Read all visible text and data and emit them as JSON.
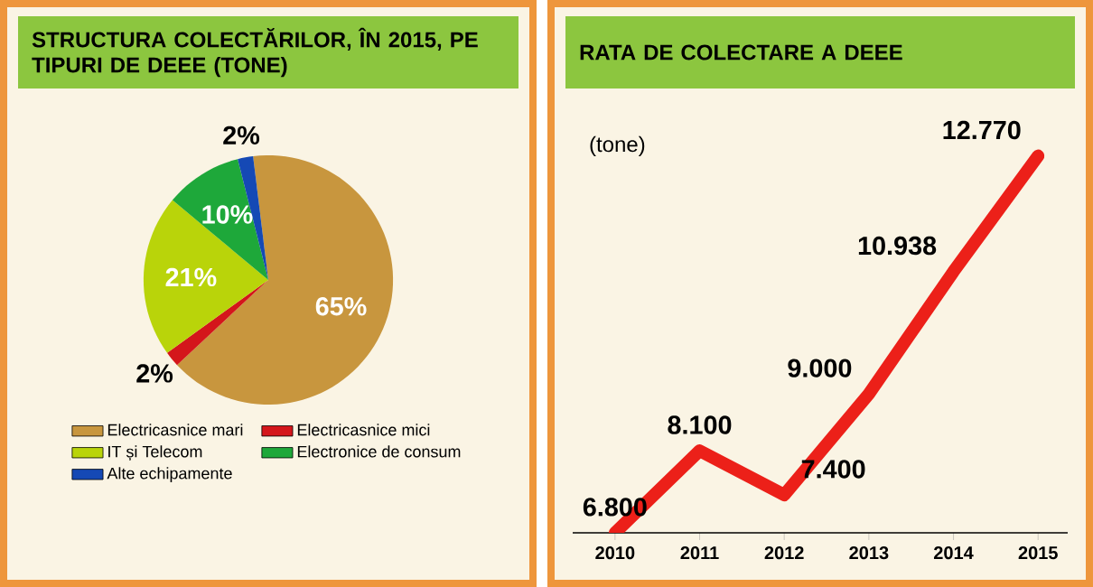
{
  "chart_data": [
    {
      "type": "pie",
      "title": "STRUCTURA COLECTĂRILOR, ÎN 2015, PE TIPURI DE DEEE (TONE)",
      "categories": [
        "Electricasnice mari",
        "Electricasnice mici",
        "IT și Telecom",
        "Electronice de consum",
        "Alte echipamente"
      ],
      "values": [
        65,
        2,
        21,
        10,
        2
      ],
      "colors": [
        "#c8963e",
        "#d4161b",
        "#b9d40a",
        "#1ea83a",
        "#1549b5"
      ],
      "value_labels": [
        "65%",
        "2%",
        "21%",
        "10%",
        "2%"
      ],
      "legend": "bottom"
    },
    {
      "type": "line",
      "title": "RATA DE COLECTARE A DEEE",
      "annotations": [
        "(tone)"
      ],
      "categories": [
        "2010",
        "2011",
        "2012",
        "2013",
        "2014",
        "2015"
      ],
      "values": [
        6800,
        8100,
        7400,
        9000,
        10938,
        12770
      ],
      "color": "#ec2019",
      "value_labels": [
        "6.800",
        "8.100",
        "7.400",
        "9.000",
        "10.938",
        "12.770"
      ]
    }
  ]
}
